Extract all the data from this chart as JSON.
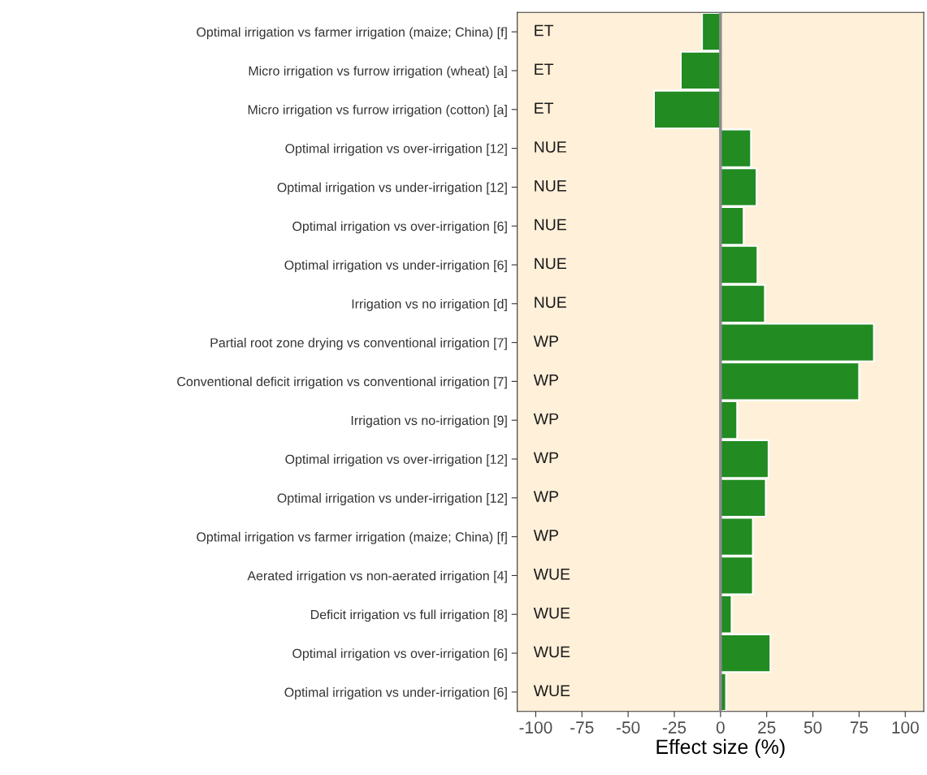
{
  "chart_data": {
    "type": "bar",
    "orientation": "horizontal",
    "xlabel": "Effect size (%)",
    "categories": [
      "Optimal irrigation vs farmer irrigation (maize; China) [f]",
      "Micro irrigation vs furrow irrigation (wheat) [a]",
      "Micro irrigation vs furrow irrigation (cotton) [a]",
      "Optimal irrigation vs over-irrigation [12]",
      "Optimal irrigation vs under-irrigation [12]",
      "Optimal irrigation vs over-irrigation [6]",
      "Optimal irrigation vs under-irrigation [6]",
      "Irrigation vs no irrigation [d]",
      "Partial root zone drying vs conventional irrigation [7]",
      "Conventional deficit irrigation vs conventional irrigation [7]",
      "Irrigation vs no-irrigation [9]",
      "Optimal irrigation vs over-irrigation [12]",
      "Optimal irrigation vs under-irrigation [12]",
      "Optimal irrigation vs farmer irrigation (maize; China) [f]",
      "Aerated irrigation vs non-aerated irrigation [4]",
      "Deficit irrigation vs full irrigation [8]",
      "Optimal irrigation vs over-irrigation [6]",
      "Optimal irrigation vs under-irrigation [6]"
    ],
    "values": [
      -10,
      -21.5,
      -36,
      16.5,
      19.5,
      12.5,
      20,
      24,
      83,
      75,
      9,
      26,
      24.5,
      17.5,
      17.5,
      6,
      27,
      3
    ],
    "color": "#228b22",
    "annotations": [
      "ET",
      "ET",
      "ET",
      "NUE",
      "NUE",
      "NUE",
      "NUE",
      "NUE",
      "WP",
      "WP",
      "WP",
      "WP",
      "WP",
      "WP",
      "WUE",
      "WUE",
      "WUE",
      "WUE"
    ],
    "xlim": [
      -110,
      110
    ],
    "xticks": [
      -100,
      -75,
      -50,
      -25,
      0,
      25,
      50,
      75,
      100
    ],
    "ref_lines": [
      {
        "axis": "x",
        "value": 0,
        "color": "#8c8c8c"
      }
    ],
    "grid": false,
    "legend": false
  }
}
